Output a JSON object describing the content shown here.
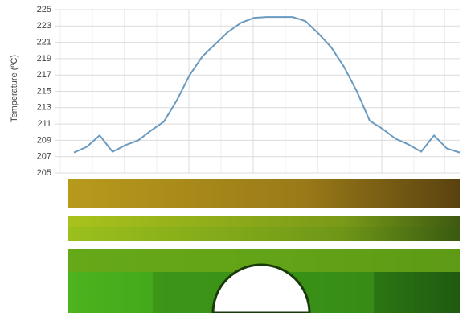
{
  "chart_data": {
    "type": "line",
    "y_label": "Temperature (ºC)",
    "categories": [
      null,
      null,
      null,
      null,
      null,
      null,
      null,
      null,
      null,
      null,
      null,
      null,
      null,
      null,
      null,
      null,
      null,
      null,
      null,
      null,
      null,
      null,
      null,
      null,
      null,
      null,
      null,
      null,
      null,
      null,
      null
    ],
    "series": [
      {
        "color": "#6a9ac0",
        "values": [
          207.5,
          208.2,
          209.6,
          207.6,
          208.4,
          209.0,
          210.2,
          211.3,
          213.9,
          217.0,
          219.3,
          220.8,
          222.3,
          223.4,
          224.0,
          224.1,
          224.1,
          224.1,
          223.6,
          222.1,
          220.4,
          218.0,
          215.0,
          211.4,
          210.4,
          209.2,
          208.5,
          207.6,
          209.6,
          208.0,
          207.5
        ]
      }
    ],
    "ylim": [
      205,
      225
    ],
    "yticks": [
      205,
      207,
      209,
      211,
      213,
      215,
      217,
      219,
      221,
      223,
      225
    ],
    "grid": true
  }
}
